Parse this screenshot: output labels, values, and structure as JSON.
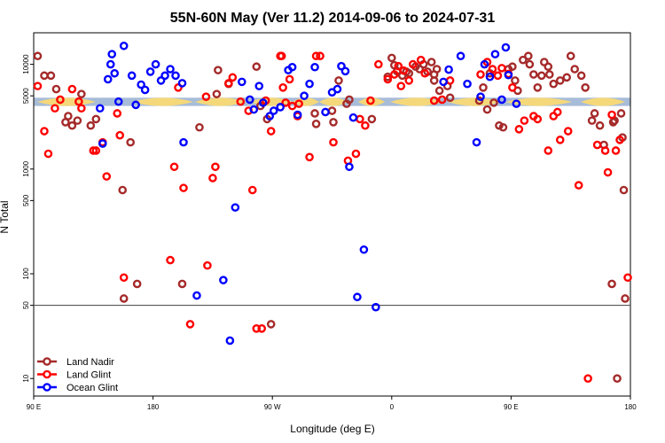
{
  "chart_data": {
    "type": "scatter",
    "title": "55N-60N May (Ver 11.2)   2014-09-06 to 2024-07-31",
    "xlabel": "Longitude (deg E)",
    "ylabel": "N Total",
    "x_ticks": [
      {
        "value": 90,
        "label": "90 E"
      },
      {
        "value": 180,
        "label": "180"
      },
      {
        "value": 270,
        "label": "90 W"
      },
      {
        "value": 360,
        "label": "0"
      },
      {
        "value": 450,
        "label": "90 E"
      },
      {
        "value": 540,
        "label": "180"
      }
    ],
    "y_ticks": [
      {
        "value": 10,
        "label": "10"
      },
      {
        "value": 50,
        "label": "50"
      },
      {
        "value": 100,
        "label": "100"
      },
      {
        "value": 500,
        "label": "500"
      },
      {
        "value": 1000,
        "label": "1000"
      },
      {
        "value": 5000,
        "label": "5000"
      },
      {
        "value": 10000,
        "label": "10000"
      }
    ],
    "xlim": [
      90,
      540
    ],
    "ylim": [
      6.8,
      20000
    ],
    "y_scale": "log",
    "reference_line": 50,
    "band": {
      "y_low": 4000,
      "y_high": 4800
    },
    "colors": {
      "land_nadir": "#a52a2a",
      "land_glint": "#ff0000",
      "ocean_glint": "#0000ff",
      "band_yellow": "#f5d87a",
      "band_blue": "#a7bcd8"
    },
    "legend": {
      "position": "bottom-left",
      "entries": [
        "Land Nadir",
        "Land Glint",
        "Ocean Glint"
      ]
    },
    "series": [
      {
        "name": "Land Nadir",
        "color": "#a52a2a",
        "points": [
          [
            93,
            12000
          ],
          [
            98,
            7800
          ],
          [
            103,
            7800
          ],
          [
            107,
            5800
          ],
          [
            114,
            2800
          ],
          [
            116,
            3200
          ],
          [
            119,
            2600
          ],
          [
            123,
            2900
          ],
          [
            126,
            5200
          ],
          [
            133,
            2600
          ],
          [
            137,
            3000
          ],
          [
            157,
            630
          ],
          [
            158,
            58
          ],
          [
            163,
            1800
          ],
          [
            168,
            80
          ],
          [
            202,
            80
          ],
          [
            215,
            2500
          ],
          [
            229,
            8800
          ],
          [
            228,
            5200
          ],
          [
            237,
            6500
          ],
          [
            258,
            9500
          ],
          [
            261,
            4000
          ],
          [
            266,
            3000
          ],
          [
            269,
            33
          ],
          [
            302,
            3400
          ],
          [
            303,
            2700
          ],
          [
            315,
            3600
          ],
          [
            316,
            2800
          ],
          [
            320,
            7000
          ],
          [
            328,
            4600
          ],
          [
            326,
            4200
          ],
          [
            345,
            3000
          ],
          [
            357,
            7600
          ],
          [
            360,
            11500
          ],
          [
            362,
            9800
          ],
          [
            364,
            8600
          ],
          [
            368,
            7800
          ],
          [
            371,
            8500
          ],
          [
            373,
            8200
          ],
          [
            378,
            9500
          ],
          [
            381,
            9000
          ],
          [
            384,
            10000
          ],
          [
            387,
            8500
          ],
          [
            390,
            10500
          ],
          [
            392,
            8000
          ],
          [
            394,
            9000
          ],
          [
            392,
            7000
          ],
          [
            396,
            5600
          ],
          [
            402,
            6200
          ],
          [
            404,
            4800
          ],
          [
            429,
            6000
          ],
          [
            426,
            4500
          ],
          [
            432,
            3700
          ],
          [
            434,
            8200
          ],
          [
            437,
            4300
          ],
          [
            441,
            2600
          ],
          [
            444,
            2500
          ],
          [
            448,
            9000
          ],
          [
            451,
            9500
          ],
          [
            453,
            7000
          ],
          [
            455,
            5600
          ],
          [
            459,
            11000
          ],
          [
            463,
            12000
          ],
          [
            464,
            10000
          ],
          [
            467,
            8000
          ],
          [
            470,
            6000
          ],
          [
            473,
            7800
          ],
          [
            475,
            10500
          ],
          [
            478,
            9500
          ],
          [
            479,
            8000
          ],
          [
            482,
            6500
          ],
          [
            487,
            7000
          ],
          [
            492,
            7500
          ],
          [
            495,
            12000
          ],
          [
            498,
            9000
          ],
          [
            503,
            7800
          ],
          [
            506,
            6000
          ],
          [
            511,
            2900
          ],
          [
            513,
            3400
          ],
          [
            517,
            2600
          ],
          [
            520,
            1700
          ],
          [
            526,
            80
          ],
          [
            530,
            10
          ],
          [
            534,
            2000
          ],
          [
            535,
            630
          ],
          [
            536,
            58
          ],
          [
            527,
            2800
          ],
          [
            528,
            2900
          ],
          [
            533,
            3400
          ]
        ]
      },
      {
        "name": "Land Glint",
        "color": "#ff0000",
        "points": [
          [
            93,
            6200
          ],
          [
            98,
            2300
          ],
          [
            101,
            1400
          ],
          [
            106,
            3800
          ],
          [
            110,
            4600
          ],
          [
            119,
            5800
          ],
          [
            124,
            4400
          ],
          [
            126,
            3800
          ],
          [
            135,
            1500
          ],
          [
            137,
            1500
          ],
          [
            142,
            1800
          ],
          [
            145,
            850
          ],
          [
            153,
            3400
          ],
          [
            155,
            2100
          ],
          [
            158,
            92
          ],
          [
            193,
            135
          ],
          [
            196,
            1050
          ],
          [
            199,
            6000
          ],
          [
            203,
            660
          ],
          [
            208,
            33
          ],
          [
            220,
            4900
          ],
          [
            221,
            120
          ],
          [
            225,
            820
          ],
          [
            227,
            1050
          ],
          [
            237,
            6600
          ],
          [
            240,
            7500
          ],
          [
            246,
            4400
          ],
          [
            252,
            3600
          ],
          [
            255,
            630
          ],
          [
            258,
            30
          ],
          [
            262,
            30
          ],
          [
            265,
            4500
          ],
          [
            269,
            2300
          ],
          [
            276,
            12000
          ],
          [
            277,
            12000
          ],
          [
            278,
            6000
          ],
          [
            280,
            4300
          ],
          [
            285,
            4000
          ],
          [
            283,
            7200
          ],
          [
            289,
            3200
          ],
          [
            290,
            4200
          ],
          [
            298,
            1300
          ],
          [
            303,
            12000
          ],
          [
            306,
            12000
          ],
          [
            316,
            1800
          ],
          [
            327,
            1200
          ],
          [
            333,
            1400
          ],
          [
            336,
            3000
          ],
          [
            340,
            2600
          ],
          [
            344,
            4500
          ],
          [
            350,
            10000
          ],
          [
            357,
            7200
          ],
          [
            362,
            8000
          ],
          [
            365,
            9600
          ],
          [
            367,
            6200
          ],
          [
            369,
            8700
          ],
          [
            373,
            7000
          ],
          [
            376,
            10000
          ],
          [
            382,
            11000
          ],
          [
            385,
            8200
          ],
          [
            392,
            4500
          ],
          [
            398,
            4600
          ],
          [
            404,
            7000
          ],
          [
            427,
            8000
          ],
          [
            432,
            10500
          ],
          [
            436,
            9000
          ],
          [
            440,
            7800
          ],
          [
            443,
            9200
          ],
          [
            448,
            8100
          ],
          [
            451,
            6000
          ],
          [
            456,
            2400
          ],
          [
            460,
            2900
          ],
          [
            467,
            3200
          ],
          [
            470,
            3000
          ],
          [
            478,
            1500
          ],
          [
            482,
            3200
          ],
          [
            485,
            3500
          ],
          [
            487,
            1900
          ],
          [
            493,
            2300
          ],
          [
            501,
            700
          ],
          [
            508,
            10
          ],
          [
            515,
            1700
          ],
          [
            521,
            1500
          ],
          [
            523,
            930
          ],
          [
            526,
            3300
          ],
          [
            529,
            1500
          ],
          [
            532,
            1900
          ],
          [
            538,
            92
          ]
        ]
      },
      {
        "name": "Ocean Glint",
        "color": "#0000ff",
        "points": [
          [
            140,
            3800
          ],
          [
            142,
            1750
          ],
          [
            146,
            7200
          ],
          [
            148,
            10000
          ],
          [
            149,
            12500
          ],
          [
            151,
            8200
          ],
          [
            154,
            4400
          ],
          [
            158,
            15000
          ],
          [
            164,
            7800
          ],
          [
            167,
            4100
          ],
          [
            171,
            6400
          ],
          [
            174,
            5700
          ],
          [
            178,
            8500
          ],
          [
            182,
            10000
          ],
          [
            186,
            7000
          ],
          [
            189,
            7800
          ],
          [
            193,
            9000
          ],
          [
            197,
            7800
          ],
          [
            202,
            6600
          ],
          [
            203,
            1800
          ],
          [
            213,
            62
          ],
          [
            238,
            23
          ],
          [
            233,
            87
          ],
          [
            242,
            430
          ],
          [
            247,
            6800
          ],
          [
            253,
            4600
          ],
          [
            256,
            3700
          ],
          [
            260,
            6200
          ],
          [
            263,
            4300
          ],
          [
            268,
            3200
          ],
          [
            271,
            3600
          ],
          [
            276,
            3900
          ],
          [
            282,
            8800
          ],
          [
            285,
            9400
          ],
          [
            289,
            3300
          ],
          [
            294,
            5000
          ],
          [
            298,
            6500
          ],
          [
            302,
            9400
          ],
          [
            310,
            3500
          ],
          [
            315,
            5400
          ],
          [
            319,
            5800
          ],
          [
            322,
            9600
          ],
          [
            325,
            8600
          ],
          [
            328,
            1050
          ],
          [
            331,
            3100
          ],
          [
            334,
            60
          ],
          [
            339,
            170
          ],
          [
            348,
            48
          ],
          [
            399,
            6800
          ],
          [
            403,
            8900
          ],
          [
            412,
            12000
          ],
          [
            417,
            6500
          ],
          [
            424,
            1800
          ],
          [
            427,
            4900
          ],
          [
            430,
            10000
          ],
          [
            434,
            7600
          ],
          [
            438,
            12500
          ],
          [
            443,
            4600
          ],
          [
            446,
            14500
          ],
          [
            448,
            7900
          ],
          [
            454,
            4200
          ]
        ]
      }
    ]
  }
}
